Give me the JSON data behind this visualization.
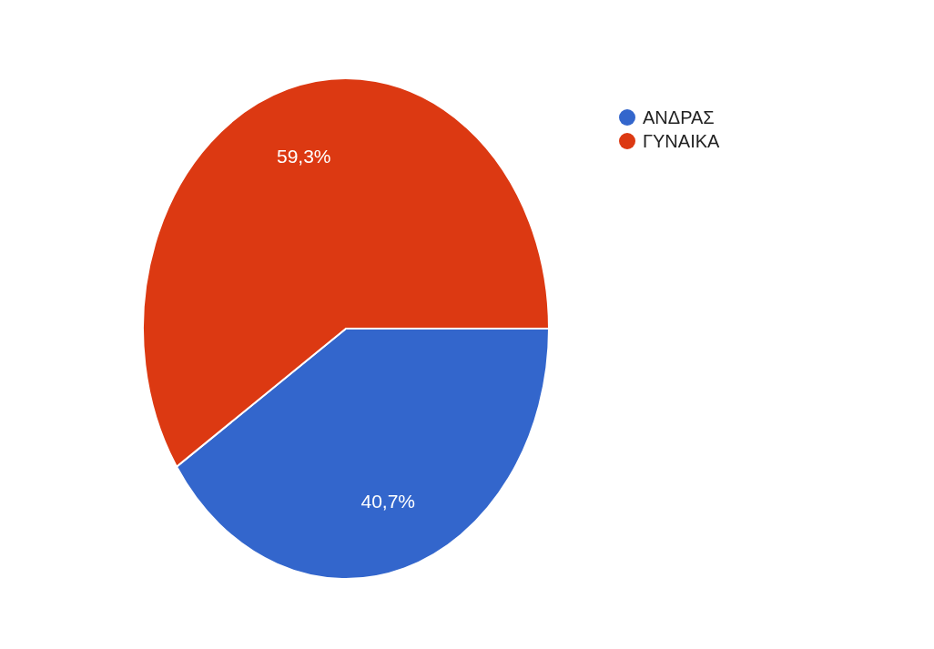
{
  "chart_data": {
    "type": "pie",
    "categories": [
      "ΑΝΔΡΑΣ",
      "ΓΥΝΑΙΚΑ"
    ],
    "values": [
      40.7,
      59.3
    ],
    "colors": [
      "#3366cc",
      "#dc3912"
    ],
    "value_labels": [
      "40,7%",
      "59,3%"
    ],
    "legend": "top right"
  }
}
